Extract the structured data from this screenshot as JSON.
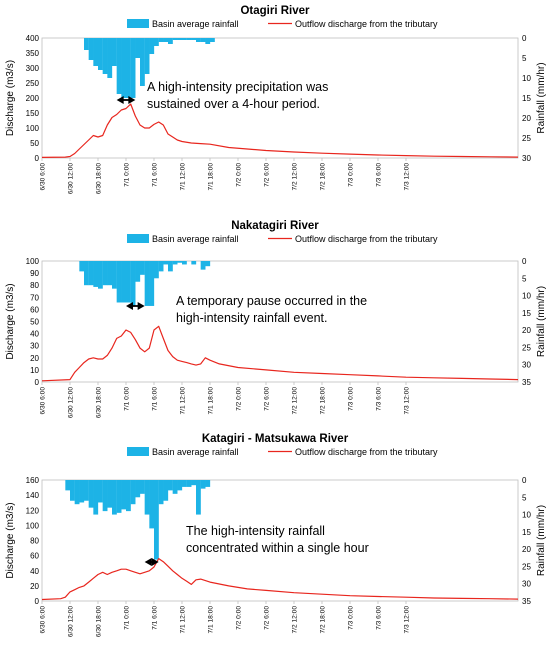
{
  "chart_data": [
    {
      "type": "bar+line",
      "title": "Otagiri River",
      "legend": [
        "Basin average rainfall",
        "Outflow discharge from the tributary"
      ],
      "ylabel_left": "Discharge (m3/s)",
      "ylabel_right": "Rainfall (mm/hr)",
      "ylim_left": [
        0,
        400
      ],
      "ylim_right": [
        0,
        30
      ],
      "right_axis_inverted": true,
      "yticks_left": [
        "0",
        "50",
        "100",
        "150",
        "200",
        "250",
        "300",
        "350",
        "400"
      ],
      "yticks_right": [
        "0",
        "5",
        "10",
        "15",
        "20",
        "25",
        "30"
      ],
      "xticks": [
        "6/30 6:00",
        "6/30 12:00",
        "6/30 18:00",
        "7/1 0:00",
        "7/1 6:00",
        "7/1 12:00",
        "7/1 18:00",
        "7/2 0:00",
        "7/2 6:00",
        "7/2 12:00",
        "7/2 18:00",
        "7/3 0:00",
        "7/3 6:00",
        "7/3 12:00"
      ],
      "annotation": [
        "A high-intensity precipitation was",
        "sustained over a 4-hour period."
      ],
      "arrow_hours": [
        16,
        20
      ],
      "rainfall": [
        [
          9,
          3
        ],
        [
          10,
          5.5
        ],
        [
          11,
          7
        ],
        [
          12,
          8
        ],
        [
          13,
          9
        ],
        [
          14,
          10
        ],
        [
          15,
          7
        ],
        [
          16,
          14
        ],
        [
          17,
          15
        ],
        [
          18,
          15
        ],
        [
          19,
          15
        ],
        [
          20,
          5
        ],
        [
          21,
          12
        ],
        [
          22,
          9
        ],
        [
          23,
          4
        ],
        [
          24,
          2
        ],
        [
          25,
          1
        ],
        [
          26,
          1
        ],
        [
          27,
          1.5
        ],
        [
          28,
          0.5
        ],
        [
          29,
          0.5
        ],
        [
          30,
          0.5
        ],
        [
          31,
          0.5
        ],
        [
          32,
          0.5
        ],
        [
          33,
          1
        ],
        [
          34,
          1
        ],
        [
          35,
          1.5
        ],
        [
          36,
          1
        ]
      ],
      "discharge": [
        [
          0,
          2
        ],
        [
          5,
          3
        ],
        [
          6,
          5
        ],
        [
          7,
          15
        ],
        [
          8,
          30
        ],
        [
          9,
          45
        ],
        [
          10,
          60
        ],
        [
          11,
          75
        ],
        [
          12,
          70
        ],
        [
          13,
          75
        ],
        [
          14,
          110
        ],
        [
          15,
          135
        ],
        [
          16,
          145
        ],
        [
          17,
          160
        ],
        [
          18,
          165
        ],
        [
          19,
          180
        ],
        [
          20,
          140
        ],
        [
          21,
          110
        ],
        [
          22,
          100
        ],
        [
          23,
          100
        ],
        [
          24,
          112
        ],
        [
          25,
          120
        ],
        [
          26,
          110
        ],
        [
          27,
          80
        ],
        [
          28,
          70
        ],
        [
          29,
          60
        ],
        [
          30,
          55
        ],
        [
          32,
          50
        ],
        [
          34,
          48
        ],
        [
          36,
          46
        ],
        [
          40,
          35
        ],
        [
          44,
          30
        ],
        [
          48,
          25
        ],
        [
          54,
          20
        ],
        [
          60,
          16
        ],
        [
          66,
          13
        ],
        [
          72,
          10
        ],
        [
          78,
          8
        ],
        [
          84,
          6
        ],
        [
          90,
          5
        ],
        [
          96,
          4
        ],
        [
          102,
          3
        ]
      ]
    },
    {
      "type": "bar+line",
      "title": "Nakatagiri River",
      "legend": [
        "Basin average rainfall",
        "Outflow discharge from the tributary"
      ],
      "ylabel_left": "Discharge (m3/s)",
      "ylabel_right": "Rainfall (mm/hr)",
      "ylim_left": [
        0,
        100
      ],
      "ylim_right": [
        0,
        35
      ],
      "right_axis_inverted": true,
      "yticks_left": [
        "0",
        "10",
        "20",
        "30",
        "40",
        "50",
        "60",
        "70",
        "80",
        "90",
        "100"
      ],
      "yticks_right": [
        "0",
        "5",
        "10",
        "15",
        "20",
        "25",
        "30",
        "35"
      ],
      "xticks": [
        "6/30 6:00",
        "6/30 12:00",
        "6/30 18:00",
        "7/1 0:00",
        "7/1 6:00",
        "7/1 12:00",
        "7/1 18:00",
        "7/2 0:00",
        "7/2 6:00",
        "7/2 12:00",
        "7/2 18:00",
        "7/3 0:00",
        "7/3 6:00",
        "7/3 12:00"
      ],
      "annotation": [
        "A temporary pause occurred in the",
        "high-intensity rainfall event."
      ],
      "arrow_hours": [
        18,
        22
      ],
      "rainfall": [
        [
          8,
          3
        ],
        [
          9,
          7
        ],
        [
          10,
          7
        ],
        [
          11,
          7.5
        ],
        [
          12,
          8
        ],
        [
          13,
          7
        ],
        [
          14,
          7
        ],
        [
          15,
          8
        ],
        [
          16,
          12
        ],
        [
          17,
          12
        ],
        [
          18,
          12
        ],
        [
          19,
          13
        ],
        [
          20,
          6
        ],
        [
          21,
          4
        ],
        [
          22,
          13
        ],
        [
          23,
          13
        ],
        [
          24,
          5
        ],
        [
          25,
          3
        ],
        [
          26,
          1
        ],
        [
          27,
          3
        ],
        [
          28,
          1
        ],
        [
          29,
          0.5
        ],
        [
          30,
          1
        ],
        [
          32,
          1
        ],
        [
          34,
          2.5
        ],
        [
          35,
          1.5
        ]
      ],
      "discharge": [
        [
          0,
          1
        ],
        [
          6,
          2
        ],
        [
          7,
          8
        ],
        [
          8,
          12
        ],
        [
          9,
          16
        ],
        [
          10,
          19
        ],
        [
          11,
          20
        ],
        [
          12,
          19
        ],
        [
          13,
          19
        ],
        [
          14,
          22
        ],
        [
          15,
          28
        ],
        [
          16,
          36
        ],
        [
          17,
          38
        ],
        [
          18,
          43
        ],
        [
          19,
          41
        ],
        [
          20,
          35
        ],
        [
          21,
          28
        ],
        [
          22,
          25
        ],
        [
          23,
          28
        ],
        [
          24,
          43
        ],
        [
          25,
          46
        ],
        [
          26,
          36
        ],
        [
          27,
          26
        ],
        [
          28,
          21
        ],
        [
          29,
          18
        ],
        [
          30,
          17
        ],
        [
          31,
          16
        ],
        [
          32,
          15
        ],
        [
          33,
          14
        ],
        [
          34,
          15
        ],
        [
          35,
          20
        ],
        [
          36,
          18
        ],
        [
          38,
          15
        ],
        [
          42,
          12
        ],
        [
          48,
          10
        ],
        [
          54,
          8
        ],
        [
          60,
          7
        ],
        [
          66,
          6
        ],
        [
          72,
          5
        ],
        [
          78,
          4
        ],
        [
          84,
          3.5
        ],
        [
          90,
          3
        ],
        [
          96,
          2.5
        ],
        [
          102,
          2
        ]
      ]
    },
    {
      "type": "bar+line",
      "title": "Katagiri - Matsukawa River",
      "legend": [
        "Basin average rainfall",
        "Outflow discharge from the tributary"
      ],
      "ylabel_left": "Discharge (m3/s)",
      "ylabel_right": "Rainfall (mm/hr)",
      "ylim_left": [
        0,
        160
      ],
      "ylim_right": [
        0,
        35
      ],
      "right_axis_inverted": true,
      "yticks_left": [
        "0",
        "20",
        "40",
        "60",
        "80",
        "100",
        "120",
        "140",
        "160"
      ],
      "yticks_right": [
        "0",
        "5",
        "10",
        "15",
        "20",
        "25",
        "30",
        "35"
      ],
      "xticks": [
        "6/30 6:00",
        "6/30 12:00",
        "6/30 18:00",
        "7/1 0:00",
        "7/1 6:00",
        "7/1 12:00",
        "7/1 18:00",
        "7/2 0:00",
        "7/2 6:00",
        "7/2 12:00",
        "7/2 18:00",
        "7/3 0:00",
        "7/3 6:00",
        "7/3 12:00"
      ],
      "annotation": [
        "The high-intensity rainfall",
        "concentrated within a single hour"
      ],
      "arrow_hours": [
        22,
        25
      ],
      "rainfall": [
        [
          5,
          3
        ],
        [
          6,
          6
        ],
        [
          7,
          7
        ],
        [
          8,
          6.5
        ],
        [
          9,
          6
        ],
        [
          10,
          8
        ],
        [
          11,
          10
        ],
        [
          12,
          6.5
        ],
        [
          13,
          9
        ],
        [
          14,
          8
        ],
        [
          15,
          10
        ],
        [
          16,
          9.5
        ],
        [
          17,
          8.5
        ],
        [
          18,
          9
        ],
        [
          19,
          7
        ],
        [
          20,
          5
        ],
        [
          21,
          4
        ],
        [
          22,
          10
        ],
        [
          23,
          14
        ],
        [
          24,
          23
        ],
        [
          25,
          7
        ],
        [
          26,
          6
        ],
        [
          27,
          3
        ],
        [
          28,
          4
        ],
        [
          29,
          3
        ],
        [
          30,
          2
        ],
        [
          31,
          2
        ],
        [
          32,
          1.5
        ],
        [
          33,
          10
        ],
        [
          34,
          2.5
        ],
        [
          35,
          2
        ]
      ],
      "discharge": [
        [
          0,
          2
        ],
        [
          4,
          3
        ],
        [
          5,
          5
        ],
        [
          6,
          12
        ],
        [
          7,
          15
        ],
        [
          8,
          18
        ],
        [
          9,
          20
        ],
        [
          10,
          25
        ],
        [
          11,
          30
        ],
        [
          12,
          35
        ],
        [
          13,
          38
        ],
        [
          14,
          35
        ],
        [
          15,
          38
        ],
        [
          16,
          40
        ],
        [
          17,
          42
        ],
        [
          18,
          42
        ],
        [
          19,
          40
        ],
        [
          20,
          38
        ],
        [
          21,
          36
        ],
        [
          22,
          38
        ],
        [
          23,
          40
        ],
        [
          24,
          45
        ],
        [
          25,
          56
        ],
        [
          26,
          52
        ],
        [
          27,
          46
        ],
        [
          28,
          40
        ],
        [
          29,
          35
        ],
        [
          30,
          30
        ],
        [
          31,
          26
        ],
        [
          32,
          22
        ],
        [
          33,
          28
        ],
        [
          34,
          29
        ],
        [
          36,
          25
        ],
        [
          40,
          20
        ],
        [
          44,
          16
        ],
        [
          48,
          14
        ],
        [
          54,
          11
        ],
        [
          60,
          9
        ],
        [
          66,
          7
        ],
        [
          72,
          6
        ],
        [
          78,
          5
        ],
        [
          84,
          4
        ],
        [
          90,
          3.5
        ],
        [
          96,
          3
        ],
        [
          102,
          2.5
        ]
      ]
    }
  ],
  "colors": {
    "rain": "#1db3e6",
    "discharge": "#e8261e",
    "axis": "#bfbfbf"
  }
}
